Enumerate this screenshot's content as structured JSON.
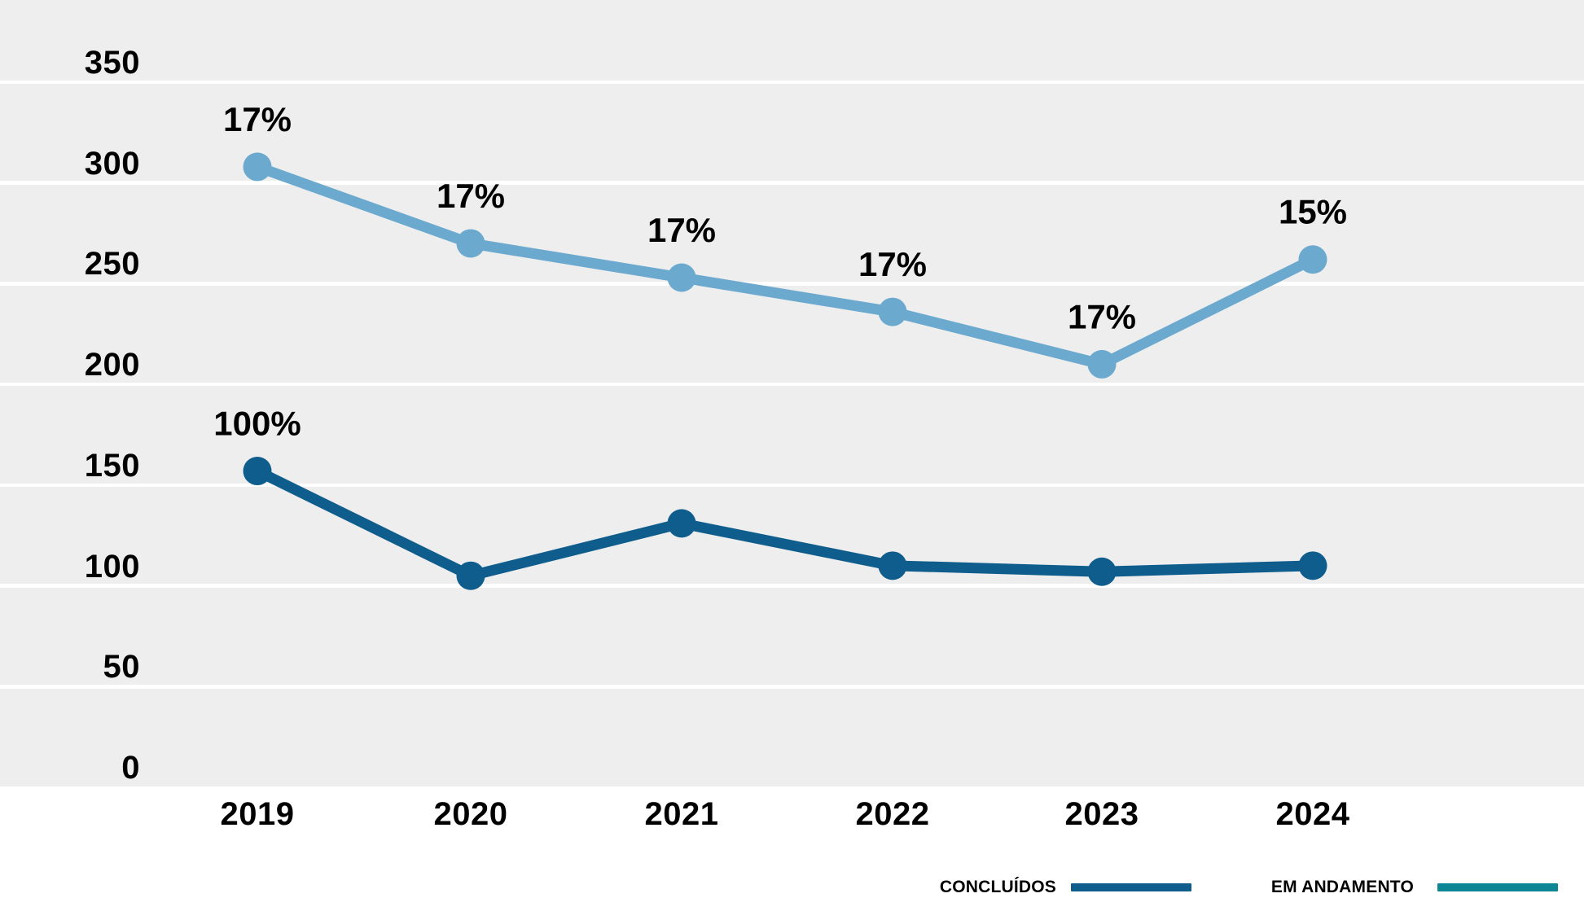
{
  "chart_data": {
    "type": "line",
    "title": "",
    "categories": [
      "2019",
      "2020",
      "2021",
      "2022",
      "2023",
      "2024"
    ],
    "series": [
      {
        "name": "CONCLUÍDOS",
        "color": "#0E5D8D",
        "legend_color": "#0E5D8D",
        "values": [
          157,
          105,
          131,
          110,
          107,
          110
        ],
        "point_labels": [
          "100%",
          "",
          "",
          "",
          "",
          ""
        ]
      },
      {
        "name": "EM ANDAMENTO",
        "color": "#6CA9CF",
        "legend_color": "#0D8796",
        "values": [
          308,
          270,
          253,
          236,
          210,
          262
        ],
        "point_labels": [
          "17%",
          "17%",
          "17%",
          "17%",
          "17%",
          "15%"
        ]
      }
    ],
    "xlabel": "",
    "ylabel": "",
    "y_ticks": [
      350,
      300,
      250,
      200,
      150,
      100,
      50,
      0
    ],
    "ylim": [
      0,
      391
    ],
    "grid": true,
    "legend_position": "bottom-right",
    "colors": {
      "plot_background": "#EEEEEE",
      "gridline": "#FFFFFF",
      "text": "#000000",
      "page_background": "#FFFFFF"
    }
  }
}
